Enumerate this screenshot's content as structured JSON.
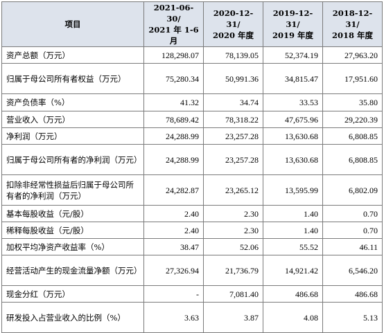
{
  "table": {
    "header": {
      "item_label": "项目",
      "columns": [
        {
          "line1": "2021-06-30/",
          "line2": "2021 年 1-6 月"
        },
        {
          "line1": "2020-12-31/",
          "line2": "2020 年度"
        },
        {
          "line1": "2019-12-31/",
          "line2": "2019 年度"
        },
        {
          "line1": "2018-12-31/",
          "line2": "2018 年度"
        }
      ]
    },
    "rows": [
      {
        "label": "资产总额（万元）",
        "values": [
          "128,298.07",
          "78,139.05",
          "52,374.19",
          "27,963.20"
        ]
      },
      {
        "label": "归属于母公司所有者权益（万元）",
        "values": [
          "75,280.34",
          "50,991.36",
          "34,815.47",
          "17,951.60"
        ]
      },
      {
        "label": "资产负债率（%）",
        "values": [
          "41.32",
          "34.74",
          "33.53",
          "35.80"
        ]
      },
      {
        "label": "营业收入（万元）",
        "values": [
          "78,689.42",
          "78,318.22",
          "47,675.96",
          "29,220.39"
        ]
      },
      {
        "label": "净利润（万元）",
        "values": [
          "24,288.99",
          "23,257.28",
          "13,630.68",
          "6,808.85"
        ]
      },
      {
        "label": "归属于母公司所有者的净利润（万元）",
        "values": [
          "24,288.99",
          "23,257.28",
          "13,630.68",
          "6,808.85"
        ]
      },
      {
        "label": "扣除非经常性损益后归属于母公司所有者的净利润（万元）",
        "values": [
          "24,282.87",
          "23,265.12",
          "13,595.99",
          "6,802.09"
        ]
      },
      {
        "label": "基本每股收益（元/股）",
        "values": [
          "2.40",
          "2.30",
          "1.40",
          "0.70"
        ]
      },
      {
        "label": "稀释每股收益（元/股）",
        "values": [
          "2.40",
          "2.30",
          "1.40",
          "0.70"
        ]
      },
      {
        "label": "加权平均净资产收益率（%）",
        "values": [
          "38.47",
          "52.06",
          "55.52",
          "46.11"
        ]
      },
      {
        "label": "经营活动产生的现金流量净额（万元）",
        "values": [
          "27,326.94",
          "21,736.79",
          "14,921.42",
          "6,546.20"
        ]
      },
      {
        "label": "现金分红（万元）",
        "values": [
          "-",
          "7,081.40",
          "486.68",
          "486.68"
        ]
      },
      {
        "label": "研发投入占营业收入的比例（%）",
        "values": [
          "3.63",
          "3.87",
          "4.08",
          "5.13"
        ]
      }
    ]
  },
  "colors": {
    "header_bg": "#dde3ec",
    "border": "#7a7a7a"
  }
}
